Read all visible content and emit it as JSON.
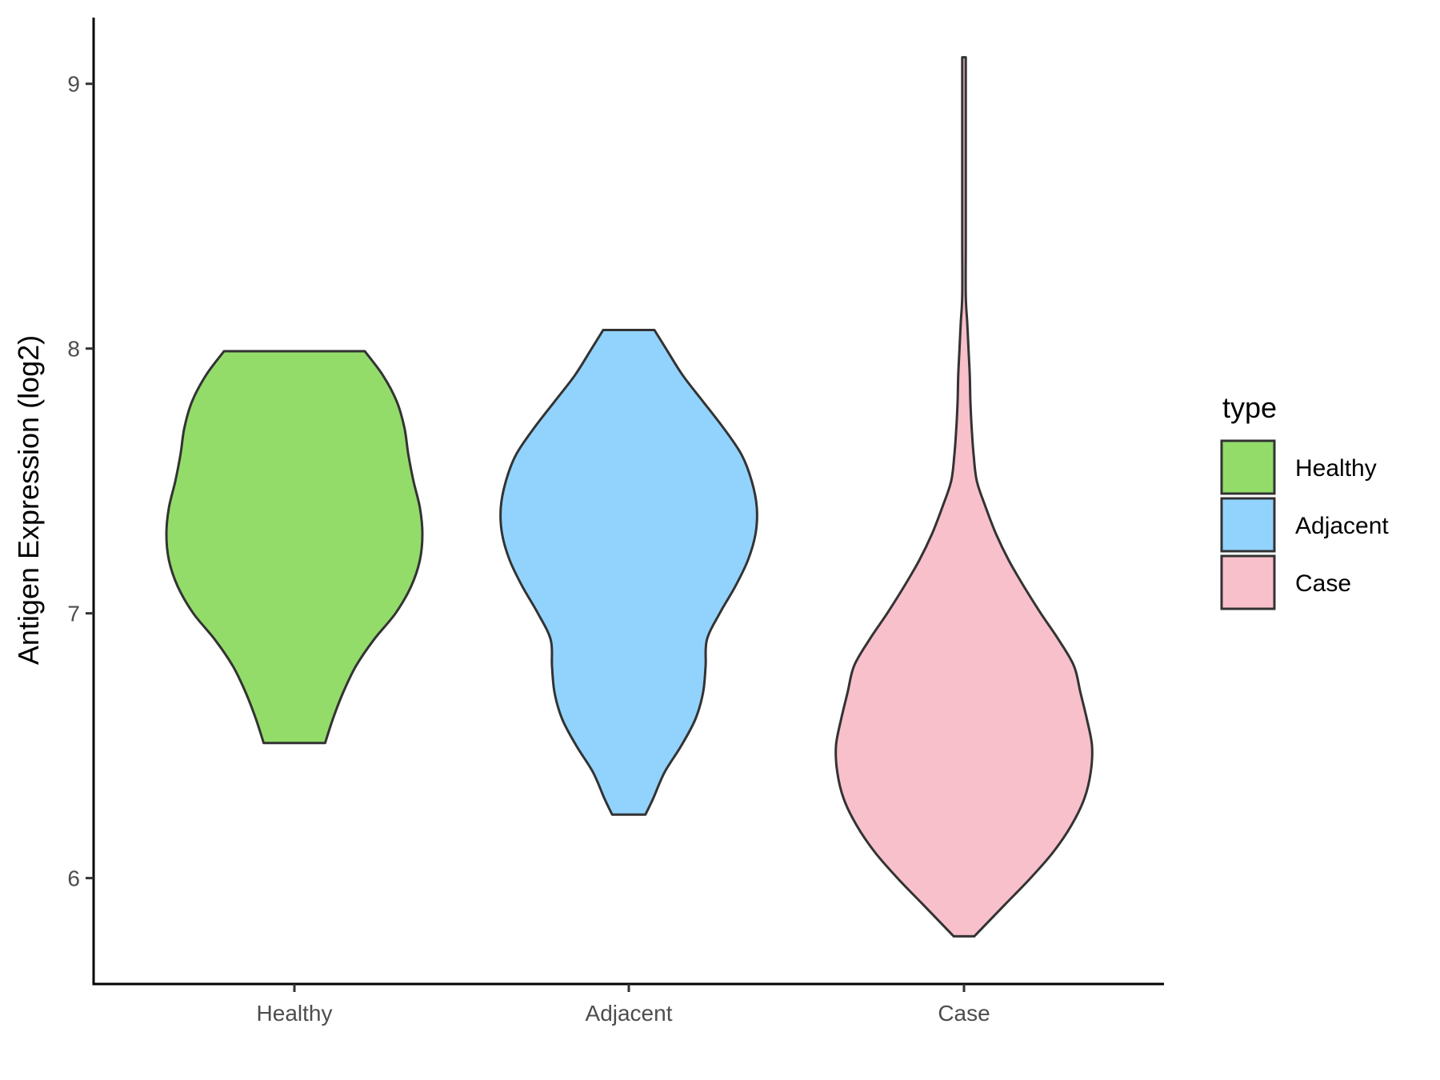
{
  "chart_data": {
    "type": "violin",
    "title": "",
    "xlabel": "",
    "ylabel": "Antigen Expression (log2)",
    "ylim": [
      5.6,
      9.25
    ],
    "yticks": [
      6,
      7,
      8,
      9
    ],
    "categories": [
      "Healthy",
      "Adjacent",
      "Case"
    ],
    "grid": false,
    "legend": {
      "title": "type",
      "position": "right",
      "entries": [
        "Healthy",
        "Adjacent",
        "Case"
      ]
    },
    "series": [
      {
        "name": "Healthy",
        "color": "#93dc6a",
        "min": 6.51,
        "max": 7.99,
        "density": [
          [
            6.51,
            0.24
          ],
          [
            6.6,
            0.3
          ],
          [
            6.7,
            0.38
          ],
          [
            6.8,
            0.48
          ],
          [
            6.9,
            0.62
          ],
          [
            7.0,
            0.79
          ],
          [
            7.1,
            0.91
          ],
          [
            7.2,
            0.98
          ],
          [
            7.3,
            1.0
          ],
          [
            7.4,
            0.98
          ],
          [
            7.5,
            0.93
          ],
          [
            7.6,
            0.89
          ],
          [
            7.7,
            0.86
          ],
          [
            7.8,
            0.8
          ],
          [
            7.9,
            0.69
          ],
          [
            7.99,
            0.55
          ]
        ]
      },
      {
        "name": "Adjacent",
        "color": "#92d3fd",
        "min": 6.24,
        "max": 8.07,
        "density": [
          [
            6.24,
            0.13
          ],
          [
            6.3,
            0.19
          ],
          [
            6.4,
            0.28
          ],
          [
            6.5,
            0.41
          ],
          [
            6.6,
            0.52
          ],
          [
            6.7,
            0.58
          ],
          [
            6.8,
            0.6
          ],
          [
            6.9,
            0.61
          ],
          [
            7.0,
            0.71
          ],
          [
            7.1,
            0.83
          ],
          [
            7.2,
            0.93
          ],
          [
            7.3,
            0.99
          ],
          [
            7.4,
            1.0
          ],
          [
            7.5,
            0.96
          ],
          [
            7.6,
            0.88
          ],
          [
            7.7,
            0.74
          ],
          [
            7.8,
            0.58
          ],
          [
            7.9,
            0.42
          ],
          [
            8.0,
            0.29
          ],
          [
            8.07,
            0.2
          ]
        ]
      },
      {
        "name": "Case",
        "color": "#f8c0cb",
        "min": 5.78,
        "max": 9.1,
        "density": [
          [
            5.78,
            0.08
          ],
          [
            5.9,
            0.32
          ],
          [
            6.0,
            0.52
          ],
          [
            6.1,
            0.7
          ],
          [
            6.2,
            0.84
          ],
          [
            6.3,
            0.94
          ],
          [
            6.4,
            0.99
          ],
          [
            6.5,
            1.0
          ],
          [
            6.6,
            0.96
          ],
          [
            6.7,
            0.91
          ],
          [
            6.8,
            0.86
          ],
          [
            6.9,
            0.74
          ],
          [
            7.0,
            0.6
          ],
          [
            7.1,
            0.47
          ],
          [
            7.2,
            0.35
          ],
          [
            7.3,
            0.25
          ],
          [
            7.4,
            0.17
          ],
          [
            7.5,
            0.1
          ],
          [
            7.6,
            0.075
          ],
          [
            7.7,
            0.06
          ],
          [
            7.8,
            0.05
          ],
          [
            7.9,
            0.045
          ],
          [
            8.0,
            0.035
          ],
          [
            8.1,
            0.025
          ],
          [
            8.2,
            0.012
          ],
          [
            8.4,
            0.006
          ],
          [
            8.6,
            0.005
          ],
          [
            8.8,
            0.005
          ],
          [
            9.0,
            0.005
          ],
          [
            9.1,
            0.005
          ]
        ]
      }
    ]
  }
}
